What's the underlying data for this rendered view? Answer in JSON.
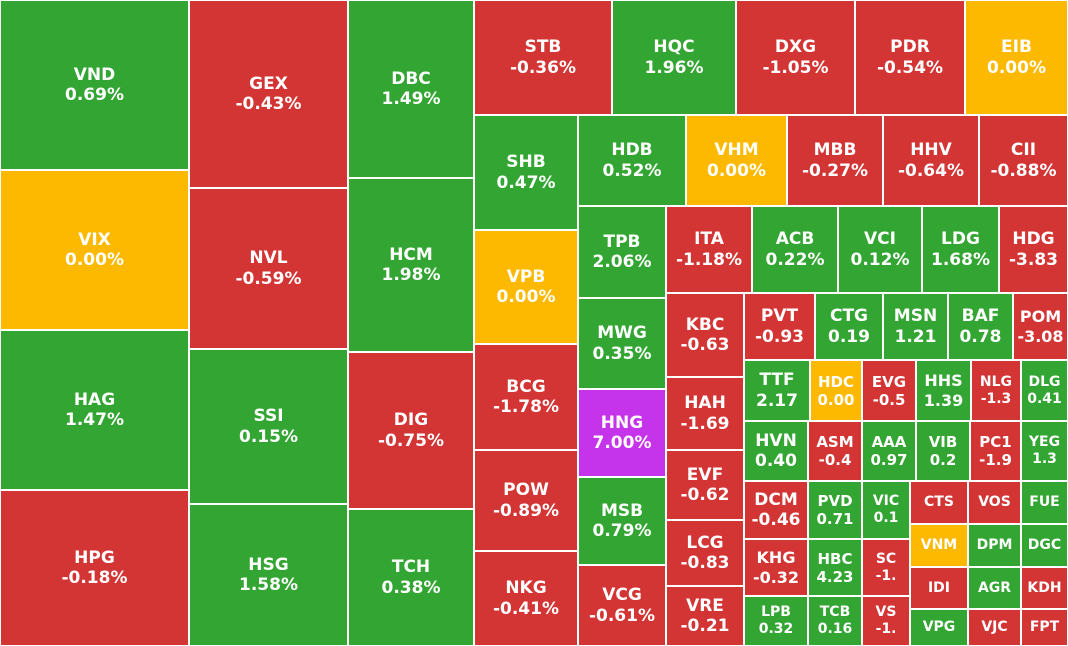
{
  "colors": {
    "up": "#33a532",
    "down": "#d33434",
    "flat": "#fcb900",
    "ceiling": "#c533ea"
  },
  "chart_data": {
    "type": "treemap",
    "tiles": [
      {
        "symbol": "VND",
        "change": "0.69%",
        "status": "up"
      },
      {
        "symbol": "VIX",
        "change": "0.00%",
        "status": "flat"
      },
      {
        "symbol": "HAG",
        "change": "1.47%",
        "status": "up"
      },
      {
        "symbol": "HPG",
        "change": "-0.18%",
        "status": "down"
      },
      {
        "symbol": "GEX",
        "change": "-0.43%",
        "status": "down"
      },
      {
        "symbol": "NVL",
        "change": "-0.59%",
        "status": "down"
      },
      {
        "symbol": "SSI",
        "change": "0.15%",
        "status": "up"
      },
      {
        "symbol": "HSG",
        "change": "1.58%",
        "status": "up"
      },
      {
        "symbol": "DBC",
        "change": "1.49%",
        "status": "up"
      },
      {
        "symbol": "HCM",
        "change": "1.98%",
        "status": "up"
      },
      {
        "symbol": "DIG",
        "change": "-0.75%",
        "status": "down"
      },
      {
        "symbol": "TCH",
        "change": "0.38%",
        "status": "up"
      },
      {
        "symbol": "STB",
        "change": "-0.36%",
        "status": "down"
      },
      {
        "symbol": "HQC",
        "change": "1.96%",
        "status": "up"
      },
      {
        "symbol": "DXG",
        "change": "-1.05%",
        "status": "down"
      },
      {
        "symbol": "PDR",
        "change": "-0.54%",
        "status": "down"
      },
      {
        "symbol": "EIB",
        "change": "0.00%",
        "status": "flat"
      },
      {
        "symbol": "SHB",
        "change": "0.47%",
        "status": "up"
      },
      {
        "symbol": "VPB",
        "change": "0.00%",
        "status": "flat"
      },
      {
        "symbol": "BCG",
        "change": "-1.78%",
        "status": "down"
      },
      {
        "symbol": "POW",
        "change": "-0.89%",
        "status": "down"
      },
      {
        "symbol": "NKG",
        "change": "-0.41%",
        "status": "down"
      },
      {
        "symbol": "HDB",
        "change": "0.52%",
        "status": "up"
      },
      {
        "symbol": "VHM",
        "change": "0.00%",
        "status": "flat"
      },
      {
        "symbol": "MBB",
        "change": "-0.27%",
        "status": "down"
      },
      {
        "symbol": "HHV",
        "change": "-0.64%",
        "status": "down"
      },
      {
        "symbol": "CII",
        "change": "-0.88%",
        "status": "down"
      },
      {
        "symbol": "TPB",
        "change": "2.06%",
        "status": "up"
      },
      {
        "symbol": "MWG",
        "change": "0.35%",
        "status": "up"
      },
      {
        "symbol": "HNG",
        "change": "7.00%",
        "status": "ceiling"
      },
      {
        "symbol": "MSB",
        "change": "0.79%",
        "status": "up"
      },
      {
        "symbol": "VCG",
        "change": "-0.61%",
        "status": "down"
      },
      {
        "symbol": "ITA",
        "change": "-1.18%",
        "status": "down"
      },
      {
        "symbol": "ACB",
        "change": "0.22%",
        "status": "up"
      },
      {
        "symbol": "VCI",
        "change": "0.12%",
        "status": "up"
      },
      {
        "symbol": "LDG",
        "change": "1.68%",
        "status": "up"
      },
      {
        "symbol": "HDG",
        "change": "-3.83",
        "status": "down"
      },
      {
        "symbol": "KBC",
        "change": "-0.63",
        "status": "down"
      },
      {
        "symbol": "HAH",
        "change": "-1.69",
        "status": "down"
      },
      {
        "symbol": "EVF",
        "change": "-0.62",
        "status": "down"
      },
      {
        "symbol": "LCG",
        "change": "-0.83",
        "status": "down"
      },
      {
        "symbol": "VRE",
        "change": "-0.21",
        "status": "down"
      },
      {
        "symbol": "PVT",
        "change": "-0.93",
        "status": "down"
      },
      {
        "symbol": "CTG",
        "change": "0.19",
        "status": "up"
      },
      {
        "symbol": "MSN",
        "change": "1.21",
        "status": "up"
      },
      {
        "symbol": "BAF",
        "change": "0.78",
        "status": "up"
      },
      {
        "symbol": "POM",
        "change": "-3.08",
        "status": "down"
      },
      {
        "symbol": "TTF",
        "change": "2.17",
        "status": "up"
      },
      {
        "symbol": "HDC",
        "change": "0.00",
        "status": "flat"
      },
      {
        "symbol": "EVG",
        "change": "-0.5",
        "status": "down"
      },
      {
        "symbol": "HHS",
        "change": "1.39",
        "status": "up"
      },
      {
        "symbol": "NLG",
        "change": "-1.3",
        "status": "down"
      },
      {
        "symbol": "DLG",
        "change": "0.41",
        "status": "up"
      },
      {
        "symbol": "HVN",
        "change": "0.40",
        "status": "up"
      },
      {
        "symbol": "ASM",
        "change": "-0.4",
        "status": "down"
      },
      {
        "symbol": "AAA",
        "change": "0.97",
        "status": "up"
      },
      {
        "symbol": "VIB",
        "change": "0.2",
        "status": "up"
      },
      {
        "symbol": "PC1",
        "change": "-1.9",
        "status": "down"
      },
      {
        "symbol": "YEG",
        "change": "1.3",
        "status": "up"
      },
      {
        "symbol": "DCM",
        "change": "-0.46",
        "status": "down"
      },
      {
        "symbol": "PVD",
        "change": "0.71",
        "status": "up"
      },
      {
        "symbol": "VIC",
        "change": "0.1",
        "status": "up"
      },
      {
        "symbol": "CTS",
        "change": "",
        "status": "down"
      },
      {
        "symbol": "VOS",
        "change": "",
        "status": "down"
      },
      {
        "symbol": "FUE",
        "change": "",
        "status": "up"
      },
      {
        "symbol": "KHG",
        "change": "-0.32",
        "status": "down"
      },
      {
        "symbol": "HBC",
        "change": "4.23",
        "status": "up"
      },
      {
        "symbol": "SC",
        "change": "-1.",
        "status": "down"
      },
      {
        "symbol": "VNM",
        "change": "",
        "status": "flat"
      },
      {
        "symbol": "DPM",
        "change": "",
        "status": "up"
      },
      {
        "symbol": "DGC",
        "change": "",
        "status": "up"
      },
      {
        "symbol": "IDI",
        "change": "",
        "status": "down"
      },
      {
        "symbol": "AGR",
        "change": "",
        "status": "up"
      },
      {
        "symbol": "KDH",
        "change": "",
        "status": "down"
      },
      {
        "symbol": "LPB",
        "change": "0.32",
        "status": "up"
      },
      {
        "symbol": "TCB",
        "change": "0.16",
        "status": "up"
      },
      {
        "symbol": "VS",
        "change": "-1.",
        "status": "down"
      },
      {
        "symbol": "VPG",
        "change": "",
        "status": "up"
      },
      {
        "symbol": "VJC",
        "change": "",
        "status": "down"
      },
      {
        "symbol": "FPT",
        "change": "",
        "status": "down"
      }
    ]
  }
}
